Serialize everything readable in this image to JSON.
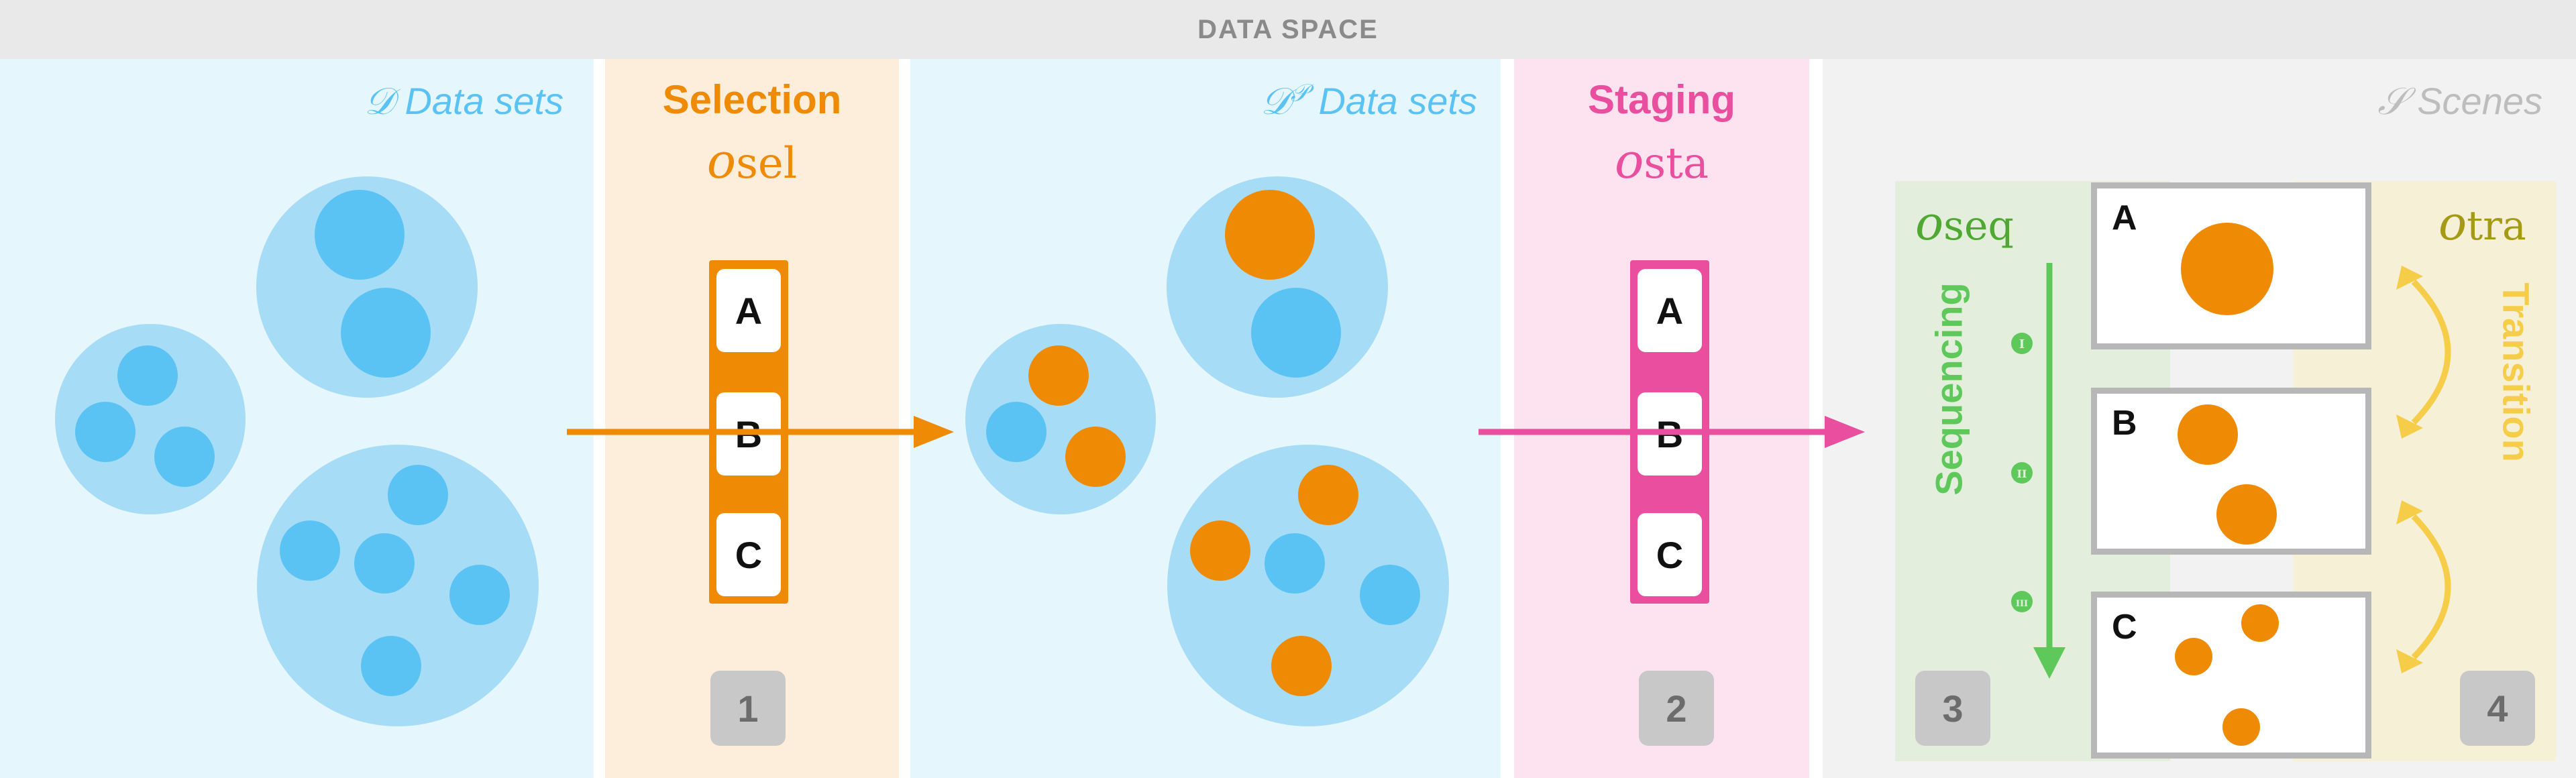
{
  "header": {
    "title": "DATA SPACE"
  },
  "panels": {
    "datasets": {
      "symbol": "𝒟",
      "label": "Data sets"
    },
    "selection": {
      "title": "Selection",
      "op": "o",
      "op_sub": "sel",
      "cards": [
        "A",
        "B",
        "C"
      ],
      "step": "1"
    },
    "p_datasets": {
      "symbol": "𝒟",
      "superscript": "𝒫",
      "label": "Data sets"
    },
    "staging": {
      "title": "Staging",
      "op": "o",
      "op_sub": "sta",
      "cards": [
        "A",
        "B",
        "C"
      ],
      "step": "2"
    },
    "scenes": {
      "symbol": "𝒮",
      "label": "Scenes",
      "sequencing": {
        "op": "o",
        "op_sub": "seq",
        "label": "Sequencing",
        "markers": [
          "I",
          "II",
          "III"
        ],
        "step": "3"
      },
      "transition": {
        "op": "o",
        "op_sub": "tra",
        "label": "Transition",
        "step": "4"
      },
      "cards": [
        "A",
        "B",
        "C"
      ]
    }
  },
  "colors": {
    "blue_light": "#e6f6fd",
    "blue_circle_bg": "#a6dcf6",
    "blue_dot": "#5bc3f4",
    "orange": "#ef8a05",
    "orange_bg": "#fdeedc",
    "pink": "#ea4f9f",
    "pink_bg": "#fde3ef",
    "green": "#5ec85a",
    "green_bg": "#e3efdc",
    "yellow": "#f5cd48",
    "yellow_bg": "#f6f0d7",
    "gray_bg": "#f2f2f2"
  }
}
